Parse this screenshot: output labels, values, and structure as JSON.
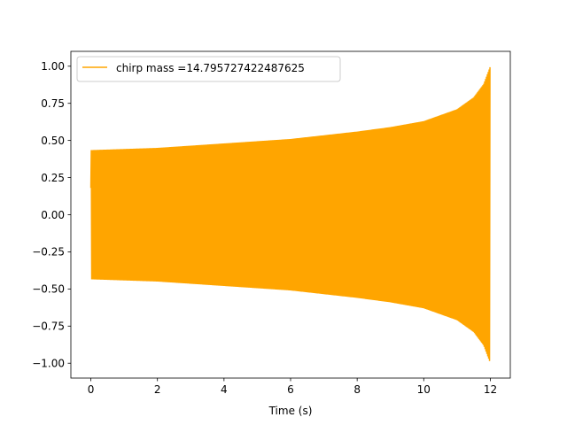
{
  "chart_data": {
    "type": "line",
    "title": "",
    "xlabel": "Time (s)",
    "ylabel": "",
    "xlim": [
      -0.6,
      12.6
    ],
    "ylim": [
      -1.1,
      1.1
    ],
    "x_ticks": [
      0,
      2,
      4,
      6,
      8,
      10,
      12
    ],
    "x_tick_labels": [
      "0",
      "2",
      "4",
      "6",
      "8",
      "10",
      "12"
    ],
    "y_ticks": [
      1.0,
      0.75,
      0.5,
      0.25,
      0.0,
      -0.25,
      -0.5,
      -0.75,
      -1.0
    ],
    "y_tick_labels": [
      "1.00",
      "0.75",
      "0.50",
      "0.25",
      "0.00",
      "−0.25",
      "−0.50",
      "−0.75",
      "−1.00"
    ],
    "grid": false,
    "legend_position": "upper-left",
    "series": [
      {
        "name": "chirp mass =14.795727422487625",
        "color": "#ffa500",
        "x_start": 0,
        "x_end": 12,
        "start_value": 0.18,
        "envelope": [
          [
            0.0,
            0.435
          ],
          [
            2.0,
            0.45
          ],
          [
            4.0,
            0.48
          ],
          [
            6.0,
            0.51
          ],
          [
            8.0,
            0.56
          ],
          [
            9.0,
            0.59
          ],
          [
            10.0,
            0.63
          ],
          [
            11.0,
            0.71
          ],
          [
            11.5,
            0.79
          ],
          [
            11.8,
            0.88
          ],
          [
            12.0,
            1.0
          ]
        ]
      }
    ]
  }
}
